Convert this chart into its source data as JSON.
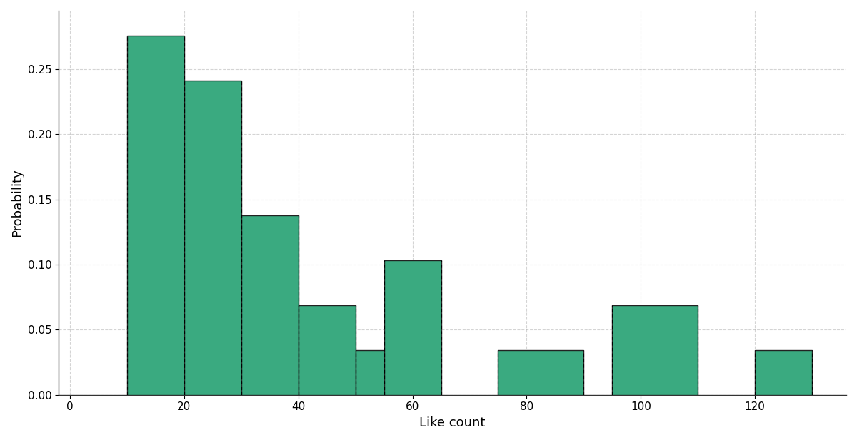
{
  "bar_left_edges": [
    10,
    20,
    30,
    40,
    50,
    55,
    75,
    95,
    120
  ],
  "bar_widths": [
    10,
    10,
    10,
    10,
    5,
    10,
    15,
    15,
    10
  ],
  "bar_heights": [
    0.2759,
    0.2414,
    0.1379,
    0.069,
    0.0345,
    0.1034,
    0.0345,
    0.069,
    0.0345
  ],
  "bar_color": "#3aaa80",
  "bar_edgecolor": "#222222",
  "bar_linewidth": 1.0,
  "xlabel": "Like count",
  "ylabel": "Probability",
  "xlim": [
    -2,
    136
  ],
  "ylim": [
    0.0,
    0.295
  ],
  "yticks": [
    0.0,
    0.05,
    0.1,
    0.15,
    0.2,
    0.25
  ],
  "xticks": [
    0,
    20,
    40,
    60,
    80,
    100,
    120
  ],
  "grid_color": "#aaaaaa",
  "grid_linestyle": "--",
  "grid_alpha": 0.5,
  "background_color": "#ffffff",
  "xlabel_fontsize": 13,
  "ylabel_fontsize": 13,
  "tick_fontsize": 11,
  "dashed_vline_color": "black",
  "dashed_vline_lw": 0.8,
  "dashed_vline_positions": [
    10,
    20,
    30,
    40,
    50,
    55,
    65,
    75,
    90,
    95,
    110,
    120,
    130
  ]
}
